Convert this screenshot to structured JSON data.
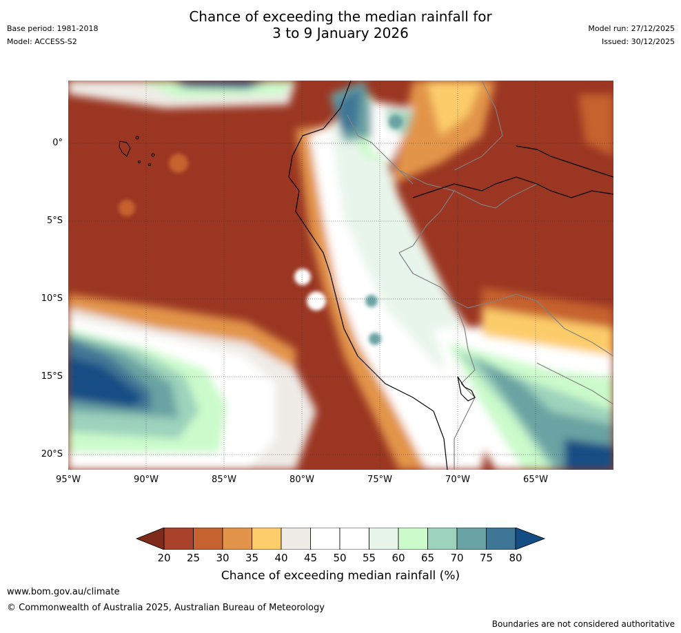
{
  "title": {
    "line1": "Chance of exceeding the median rainfall for",
    "line2": "3 to 9 January 2026"
  },
  "meta": {
    "base_period": "Base period: 1981-2018",
    "model": "Model: ACCESS-S2",
    "model_run": "Model run: 27/12/2025",
    "issued": "Issued: 30/12/2025"
  },
  "map": {
    "latitude_labels": [
      "0°",
      "5°S",
      "10°S",
      "15°S",
      "20°S"
    ],
    "longitude_labels": [
      "95°W",
      "90°W",
      "85°W",
      "80°W",
      "75°W",
      "70°W",
      "65°W"
    ]
  },
  "colorbar": {
    "label": "Chance of exceeding median rainfall (%)",
    "ticks": [
      "20",
      "25",
      "30",
      "35",
      "40",
      "45",
      "50",
      "55",
      "60",
      "65",
      "70",
      "75",
      "80"
    ],
    "colors": [
      "#9a3622",
      "#a8402a",
      "#c6622f",
      "#e2944a",
      "#fdcc6b",
      "#efebe6",
      "#ffffff",
      "#ffffff",
      "#e8f5ea",
      "#cbfbcb",
      "#9dd2bc",
      "#6aa3a3",
      "#3f7696",
      "#134d84"
    ]
  },
  "colors": {
    "dry_extreme": "#9a3622",
    "dry": "#c6622f",
    "dry_mid": "#e2944a",
    "dry_light": "#fdcc6b",
    "neutral": "#efebe6",
    "wet_light": "#cbfbcb",
    "wet_mid": "#9dd2bc",
    "wet": "#6aa3a3",
    "wet_strong": "#3f7696",
    "wet_extreme": "#134d84"
  },
  "footer": {
    "website": "www.bom.gov.au/climate",
    "copyright": "© Commonwealth of Australia 2025, Australian Bureau of Meteorology",
    "disclaimer": "Boundaries are not considered authoritative"
  }
}
